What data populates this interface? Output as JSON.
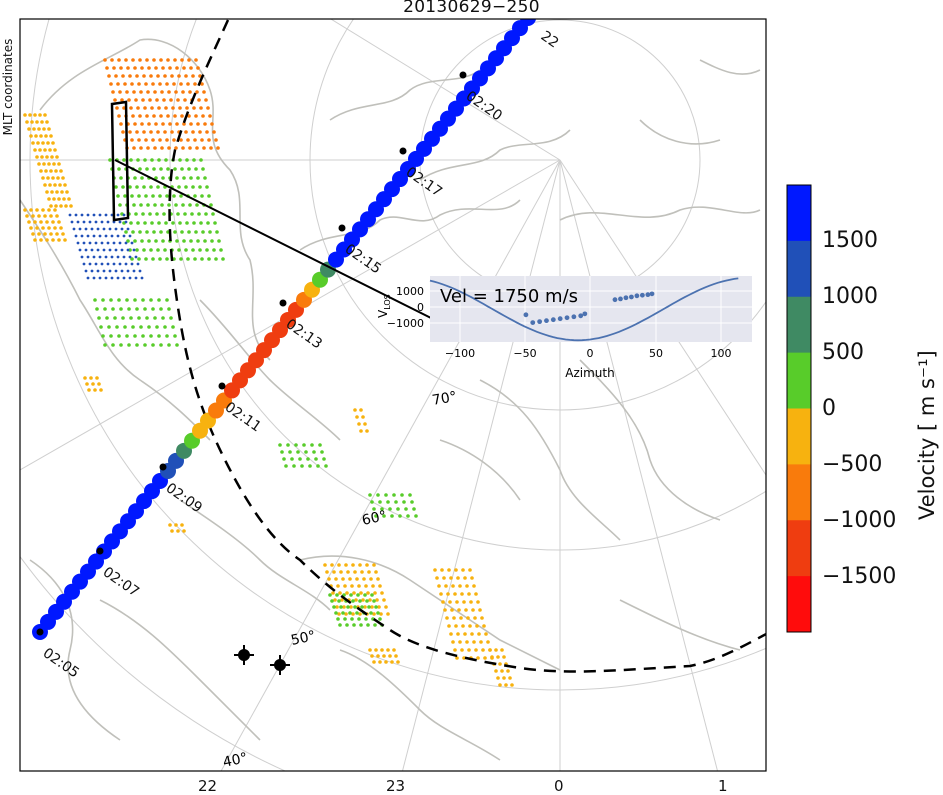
{
  "title": "20130629−250",
  "side_label": "MLT coordinates",
  "x_ticks": [
    "22",
    "23",
    "0",
    "1"
  ],
  "latitude_labels": [
    "70°",
    "60°",
    "50°",
    "40°"
  ],
  "time_labels": [
    "02:05",
    "02:07",
    "02:09",
    "02:11",
    "02:13",
    "02:15",
    "02:17",
    "02:20",
    "22"
  ],
  "colorbar": {
    "label": "Velocity  [ m  s⁻¹]",
    "ticks": [
      "1500",
      "1000",
      "500",
      "0",
      "−500",
      "−1000",
      "−1500"
    ],
    "colors": [
      "#0018ff",
      "#2050b8",
      "#3f8a63",
      "#58cc2a",
      "#f7b20f",
      "#f97b0c",
      "#ef3d10",
      "#ff0c0c"
    ]
  },
  "inset": {
    "annotation": "Vel = 1750 m/s",
    "ylabel": "V",
    "ylabel_sub": "LOS",
    "xlabel": "Azimuth",
    "y_ticks": [
      "1000",
      "0",
      "−1000"
    ],
    "x_ticks": [
      "−100",
      "−50",
      "0",
      "50",
      "100"
    ]
  },
  "chart_data": {
    "type": "scatter",
    "xlabel": "Azimuth",
    "ylabel": "VLOS",
    "xlim": [
      -115,
      120
    ],
    "ylim": [
      -1700,
      1700
    ],
    "points": [
      [
        -40,
        -700
      ],
      [
        -35,
        -650
      ],
      [
        -30,
        -600
      ],
      [
        -25,
        -550
      ],
      [
        -20,
        -500
      ],
      [
        -15,
        -450
      ],
      [
        -10,
        -400
      ],
      [
        -5,
        -350
      ],
      [
        -2,
        -250
      ],
      [
        20,
        480
      ],
      [
        24,
        520
      ],
      [
        28,
        580
      ],
      [
        32,
        620
      ],
      [
        36,
        680
      ],
      [
        40,
        710
      ],
      [
        44,
        740
      ],
      [
        47,
        780
      ],
      [
        -45,
        -300
      ]
    ],
    "fit_curve": {
      "amplitude": 1750,
      "description": "sinusoidal fit"
    }
  },
  "colors": {
    "satellite_track_dark": "#0018ff",
    "coastline": "#c0c0bb",
    "grid": "#cfcfcf"
  }
}
